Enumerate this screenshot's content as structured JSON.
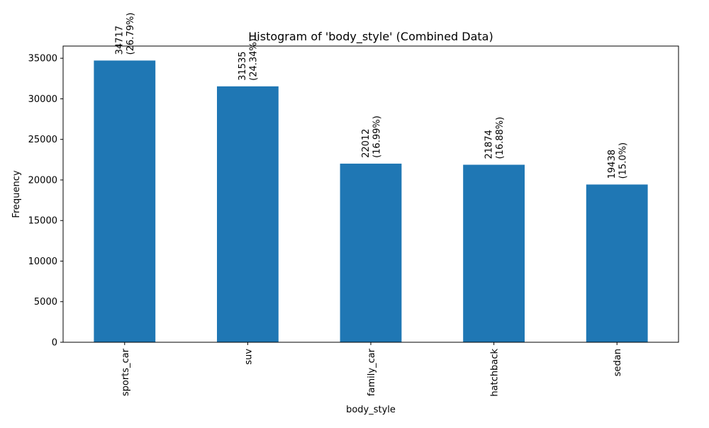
{
  "chart_data": {
    "type": "bar",
    "title": "Histogram of 'body_style' (Combined Data)",
    "xlabel": "body_style",
    "ylabel": "Frequency",
    "categories": [
      "sports_car",
      "suv",
      "family_car",
      "hatchback",
      "sedan"
    ],
    "values": [
      34717,
      31535,
      22012,
      21874,
      19438
    ],
    "percent_labels": [
      "(26.79%)",
      "(24.34%)",
      "(16.99%)",
      "(16.88%)",
      "(15.0%)"
    ],
    "ylim": [
      0,
      36500
    ],
    "yticks": [
      0,
      5000,
      10000,
      15000,
      20000,
      25000,
      30000,
      35000
    ],
    "grid": false,
    "legend": "none",
    "bar_color": "#1f77b4"
  }
}
